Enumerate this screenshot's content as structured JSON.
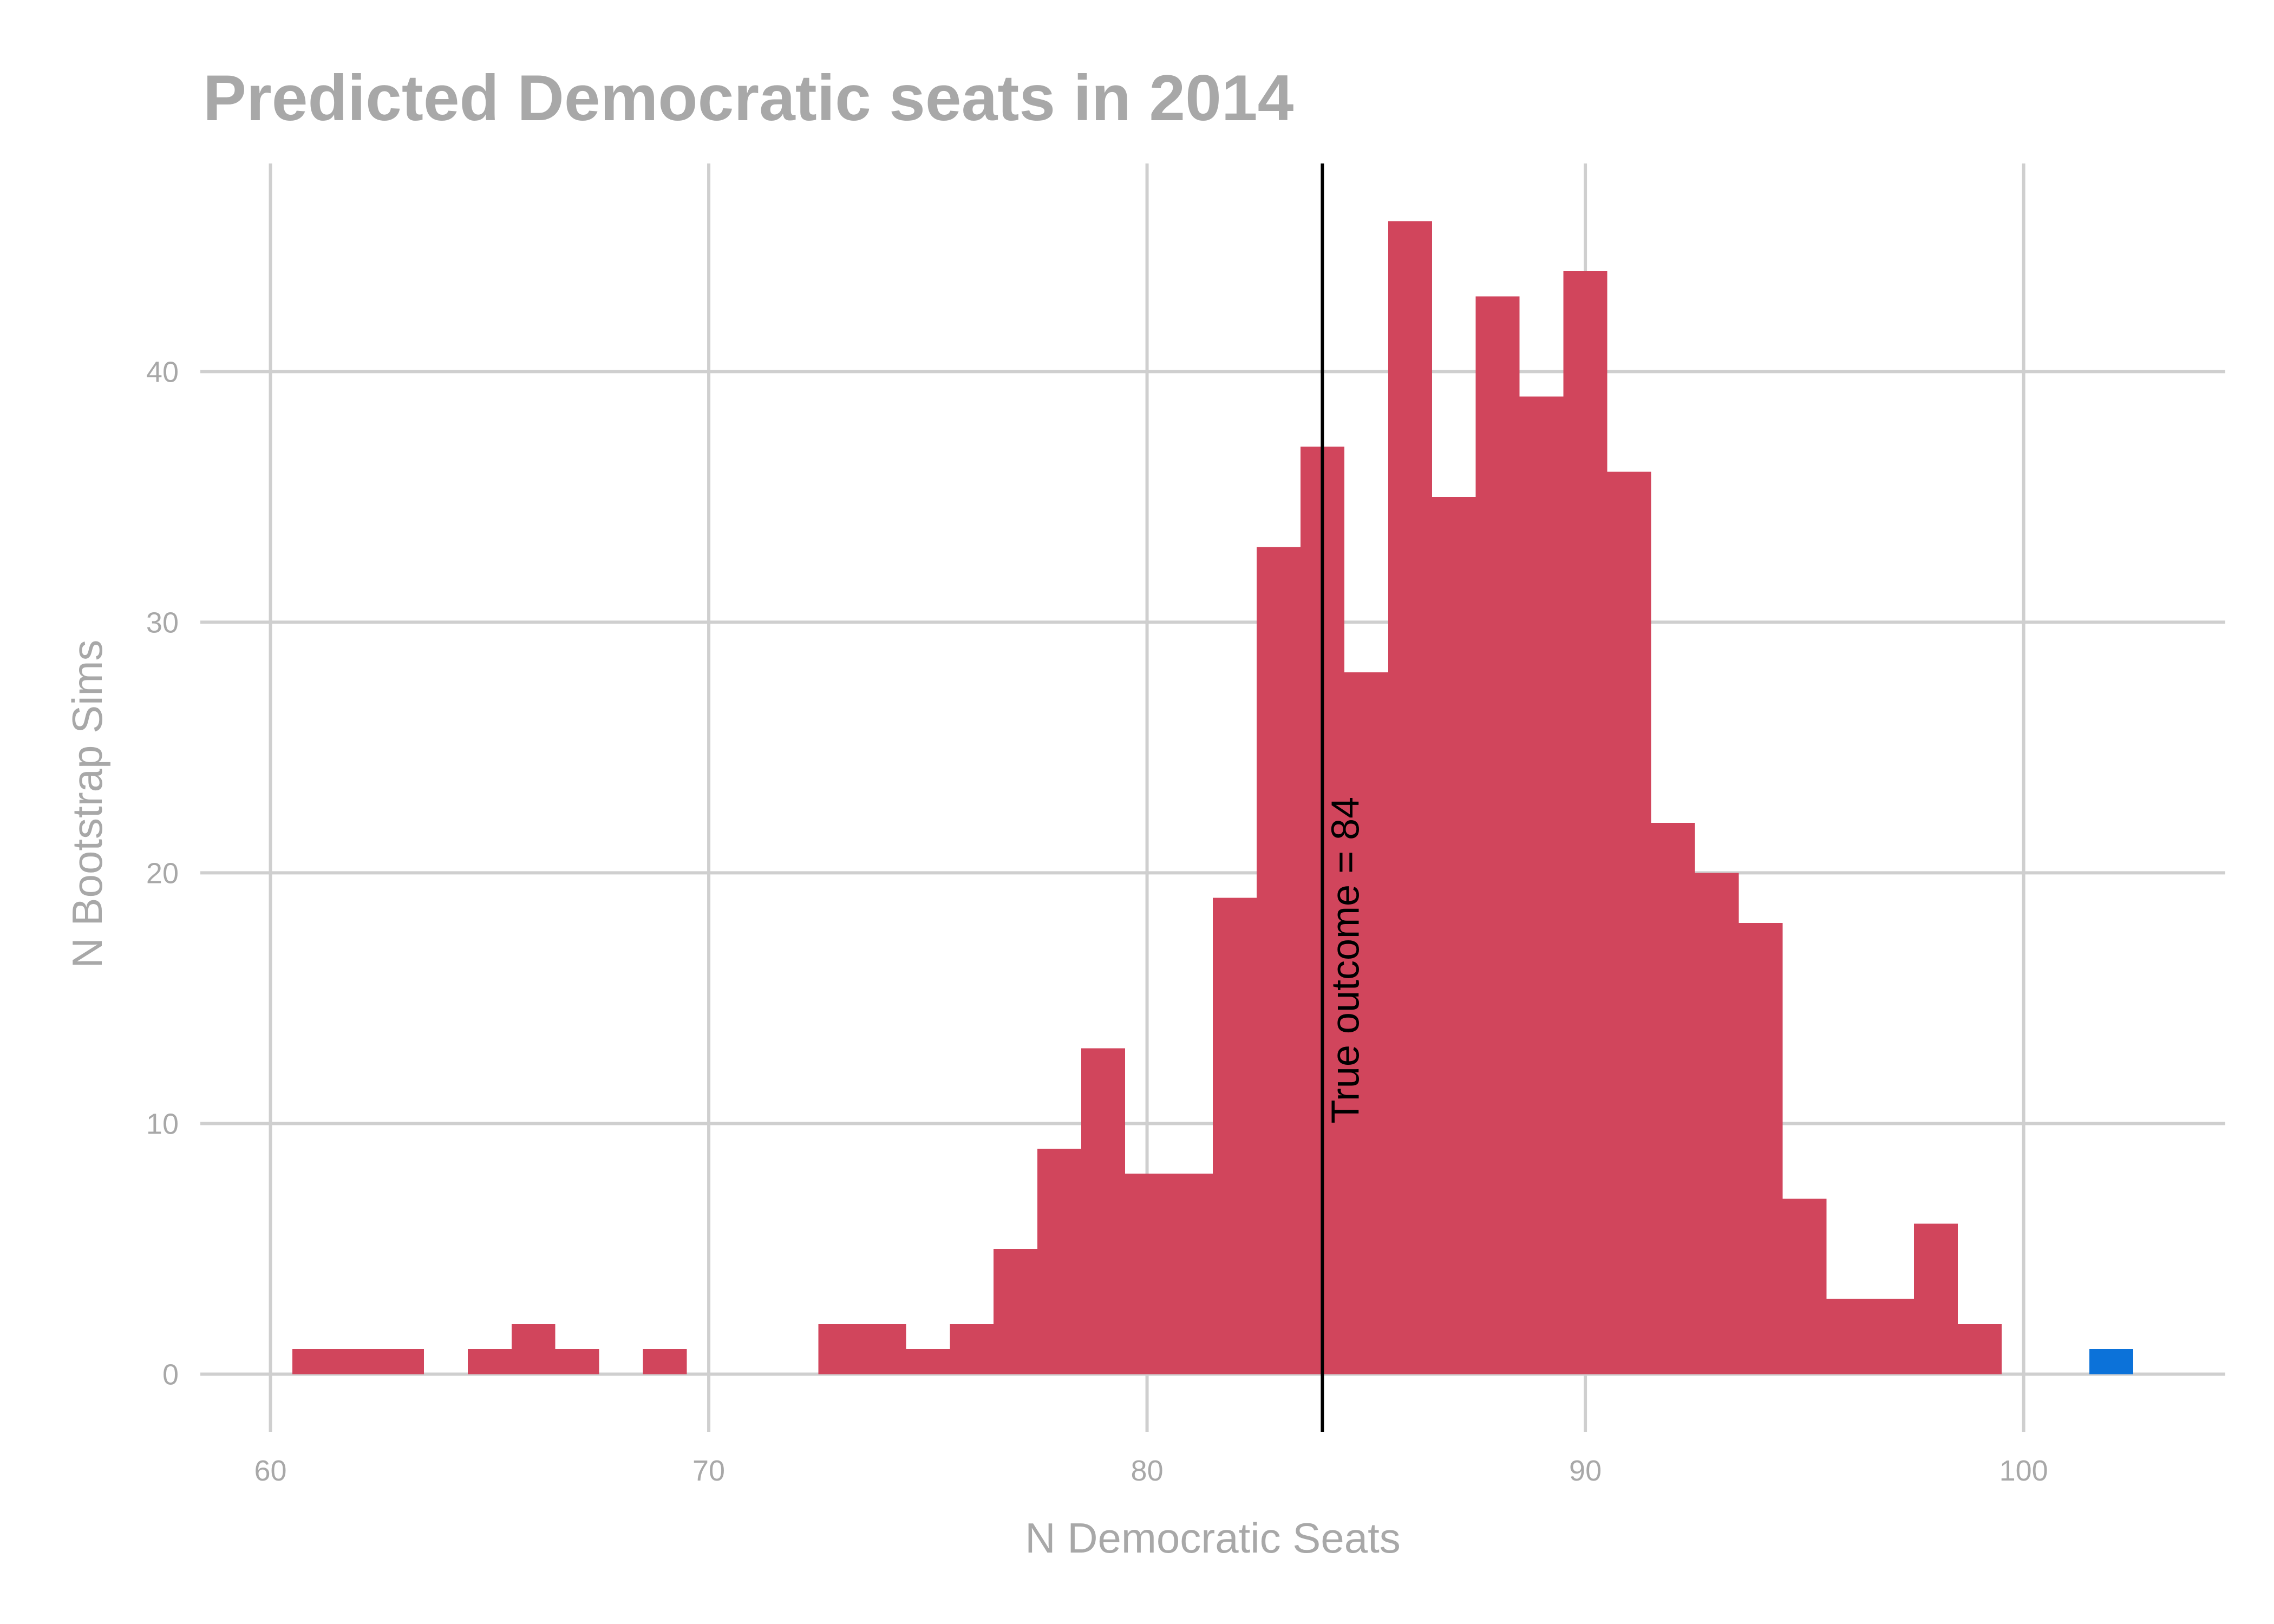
{
  "chart_data": {
    "type": "bar",
    "title": "Predicted Democratic seats in 2014",
    "xlabel": "N Democratic Seats",
    "ylabel": "N Bootstrap Sims",
    "xlim": [
      58.4,
      104.6
    ],
    "ylim": [
      -2.3,
      48.3
    ],
    "xticks": [
      60,
      70,
      80,
      90,
      100
    ],
    "yticks": [
      0,
      10,
      20,
      30,
      40
    ],
    "grid": true,
    "bin_width": 1,
    "bars": [
      {
        "x": 61,
        "value": 1
      },
      {
        "x": 62,
        "value": 1
      },
      {
        "x": 63,
        "value": 1
      },
      {
        "x": 65,
        "value": 1
      },
      {
        "x": 66,
        "value": 2
      },
      {
        "x": 67,
        "value": 1
      },
      {
        "x": 69,
        "value": 1
      },
      {
        "x": 73,
        "value": 2
      },
      {
        "x": 74,
        "value": 2
      },
      {
        "x": 75,
        "value": 1
      },
      {
        "x": 76,
        "value": 2
      },
      {
        "x": 77,
        "value": 5
      },
      {
        "x": 78,
        "value": 9
      },
      {
        "x": 79,
        "value": 13
      },
      {
        "x": 80,
        "value": 8
      },
      {
        "x": 81,
        "value": 8
      },
      {
        "x": 82,
        "value": 19
      },
      {
        "x": 83,
        "value": 33
      },
      {
        "x": 84,
        "value": 37
      },
      {
        "x": 85,
        "value": 28
      },
      {
        "x": 86,
        "value": 46
      },
      {
        "x": 87,
        "value": 35
      },
      {
        "x": 88,
        "value": 43
      },
      {
        "x": 89,
        "value": 39
      },
      {
        "x": 90,
        "value": 44
      },
      {
        "x": 91,
        "value": 36
      },
      {
        "x": 92,
        "value": 22
      },
      {
        "x": 93,
        "value": 20
      },
      {
        "x": 94,
        "value": 18
      },
      {
        "x": 95,
        "value": 7
      },
      {
        "x": 96,
        "value": 3
      },
      {
        "x": 97,
        "value": 3
      },
      {
        "x": 98,
        "value": 6
      },
      {
        "x": 99,
        "value": 2
      },
      {
        "x": 102,
        "value": 1,
        "highlight": true
      }
    ],
    "bar_color": "#d1455c",
    "highlight_color": "#0c72d9",
    "reference_line": {
      "x": 84,
      "label": "True outcome = 84",
      "color": "#000000"
    }
  }
}
